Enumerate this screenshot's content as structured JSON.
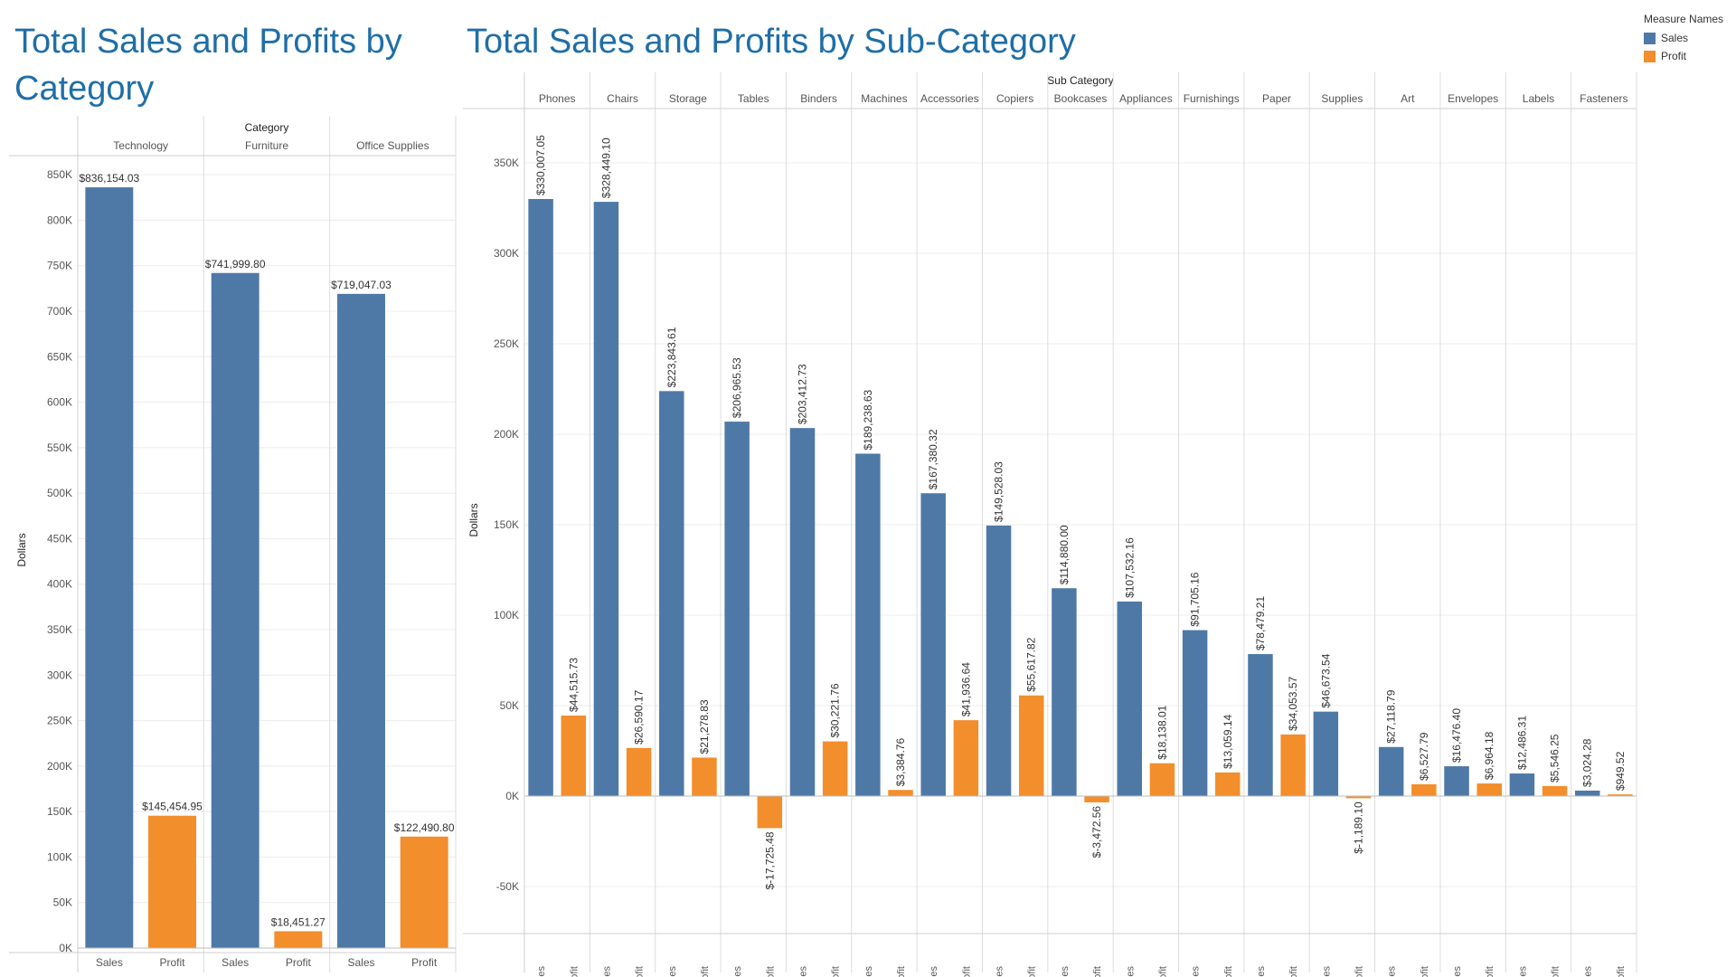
{
  "titles": {
    "left": "Total Sales and Profits by Category",
    "right": "Total Sales and Profits by Sub-Category"
  },
  "legend": {
    "title": "Measure Names",
    "items": [
      {
        "label": "Sales",
        "color": "#4e79a7"
      },
      {
        "label": "Profit",
        "color": "#f28e2b"
      }
    ]
  },
  "chart_data": [
    {
      "type": "bar",
      "title": "Total Sales and Profits by Category",
      "column_header": "Category",
      "ylabel": "Dollars",
      "ylim": [
        0,
        875000
      ],
      "yticks": [
        0,
        50000,
        100000,
        150000,
        200000,
        250000,
        300000,
        350000,
        400000,
        450000,
        500000,
        550000,
        600000,
        650000,
        700000,
        750000,
        800000,
        850000
      ],
      "ytick_labels": [
        "0K",
        "50K",
        "100K",
        "150K",
        "200K",
        "250K",
        "300K",
        "350K",
        "400K",
        "450K",
        "500K",
        "550K",
        "600K",
        "650K",
        "700K",
        "750K",
        "800K",
        "850K"
      ],
      "measures": [
        "Sales",
        "Profit"
      ],
      "categories": [
        "Technology",
        "Furniture",
        "Office Supplies"
      ],
      "series": [
        {
          "name": "Sales",
          "color": "#4e79a7",
          "values": [
            836154.03,
            741999.8,
            719047.03
          ],
          "labels": [
            "$836,154.03",
            "$741,999.80",
            "$719,047.03"
          ]
        },
        {
          "name": "Profit",
          "color": "#f28e2b",
          "values": [
            145454.95,
            18451.27,
            122490.8
          ],
          "labels": [
            "$145,454.95",
            "$18,451.27",
            "$122,490.80"
          ]
        }
      ],
      "grid": true
    },
    {
      "type": "bar",
      "title": "Total Sales and Profits by Sub-Category",
      "column_header": "Sub Category",
      "ylabel": "Dollars",
      "ylim": [
        -75000,
        380000
      ],
      "yticks": [
        -50000,
        0,
        50000,
        100000,
        150000,
        200000,
        250000,
        300000,
        350000
      ],
      "ytick_labels": [
        "-50K",
        "0K",
        "50K",
        "100K",
        "150K",
        "200K",
        "250K",
        "300K",
        "350K"
      ],
      "measures": [
        "Sales",
        "Profit"
      ],
      "categories": [
        "Phones",
        "Chairs",
        "Storage",
        "Tables",
        "Binders",
        "Machines",
        "Accessories",
        "Copiers",
        "Bookcases",
        "Appliances",
        "Furnishings",
        "Paper",
        "Supplies",
        "Art",
        "Envelopes",
        "Labels",
        "Fasteners"
      ],
      "series": [
        {
          "name": "Sales",
          "color": "#4e79a7",
          "values": [
            330007.05,
            328449.1,
            223843.61,
            206965.53,
            203412.73,
            189238.63,
            167380.32,
            149528.03,
            114880.0,
            107532.16,
            91705.16,
            78479.21,
            46673.54,
            27118.79,
            16476.4,
            12486.31,
            3024.28
          ],
          "labels": [
            "$330,007.05",
            "$328,449.10",
            "$223,843.61",
            "$206,965.53",
            "$203,412.73",
            "$189,238.63",
            "$167,380.32",
            "$149,528.03",
            "$114,880.00",
            "$107,532.16",
            "$91,705.16",
            "$78,479.21",
            "$46,673.54",
            "$27,118.79",
            "$16,476.40",
            "$12,486.31",
            "$3,024.28"
          ]
        },
        {
          "name": "Profit",
          "color": "#f28e2b",
          "values": [
            44515.73,
            26590.17,
            21278.83,
            -17725.48,
            30221.76,
            3384.76,
            41936.64,
            55617.82,
            -3472.56,
            18138.01,
            13059.14,
            34053.57,
            -1189.1,
            6527.79,
            6964.18,
            5546.25,
            949.52
          ],
          "labels": [
            "$44,515.73",
            "$26,590.17",
            "$21,278.83",
            "$-17,725.48",
            "$30,221.76",
            "$3,384.76",
            "$41,936.64",
            "$55,617.82",
            "$-3,472.56",
            "$18,138.01",
            "$13,059.14",
            "$34,053.57",
            "$-1,189.10",
            "$6,527.79",
            "$6,964.18",
            "$5,546.25",
            "$949.52"
          ]
        }
      ],
      "grid": true
    }
  ]
}
